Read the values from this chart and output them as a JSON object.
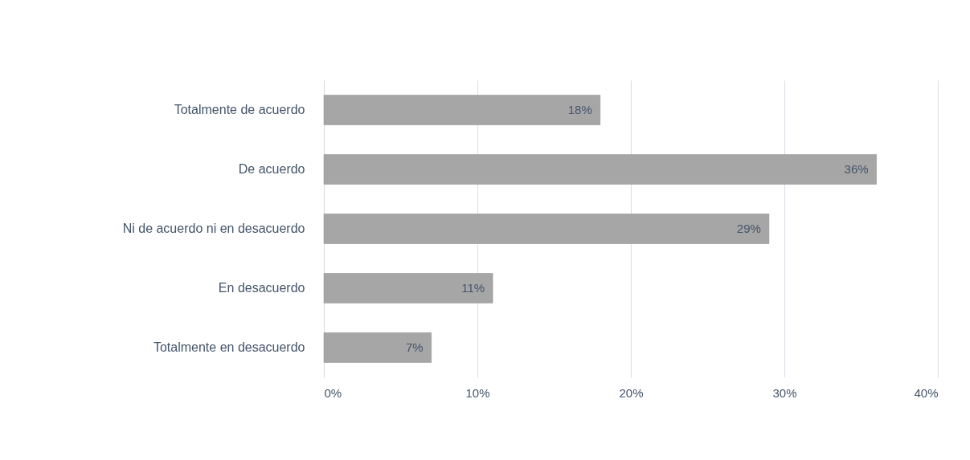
{
  "chart_data": {
    "type": "bar",
    "orientation": "horizontal",
    "categories": [
      "Totalmente de acuerdo",
      "De acuerdo",
      "Ni de acuerdo ni en desacuerdo",
      "En desacuerdo",
      "Totalmente en desacuerdo"
    ],
    "values": [
      18,
      36,
      29,
      11,
      7
    ],
    "value_labels": [
      "18%",
      "36%",
      "29%",
      "11%",
      "7%"
    ],
    "color": "#a6a6a6",
    "xlim": [
      0,
      40
    ],
    "xticks": [
      {
        "value": 0,
        "label": "0%"
      },
      {
        "value": 10,
        "label": "10%"
      },
      {
        "value": 20,
        "label": "20%"
      },
      {
        "value": 30,
        "label": "30%"
      },
      {
        "value": 40,
        "label": "40%"
      }
    ],
    "grid": "x"
  }
}
